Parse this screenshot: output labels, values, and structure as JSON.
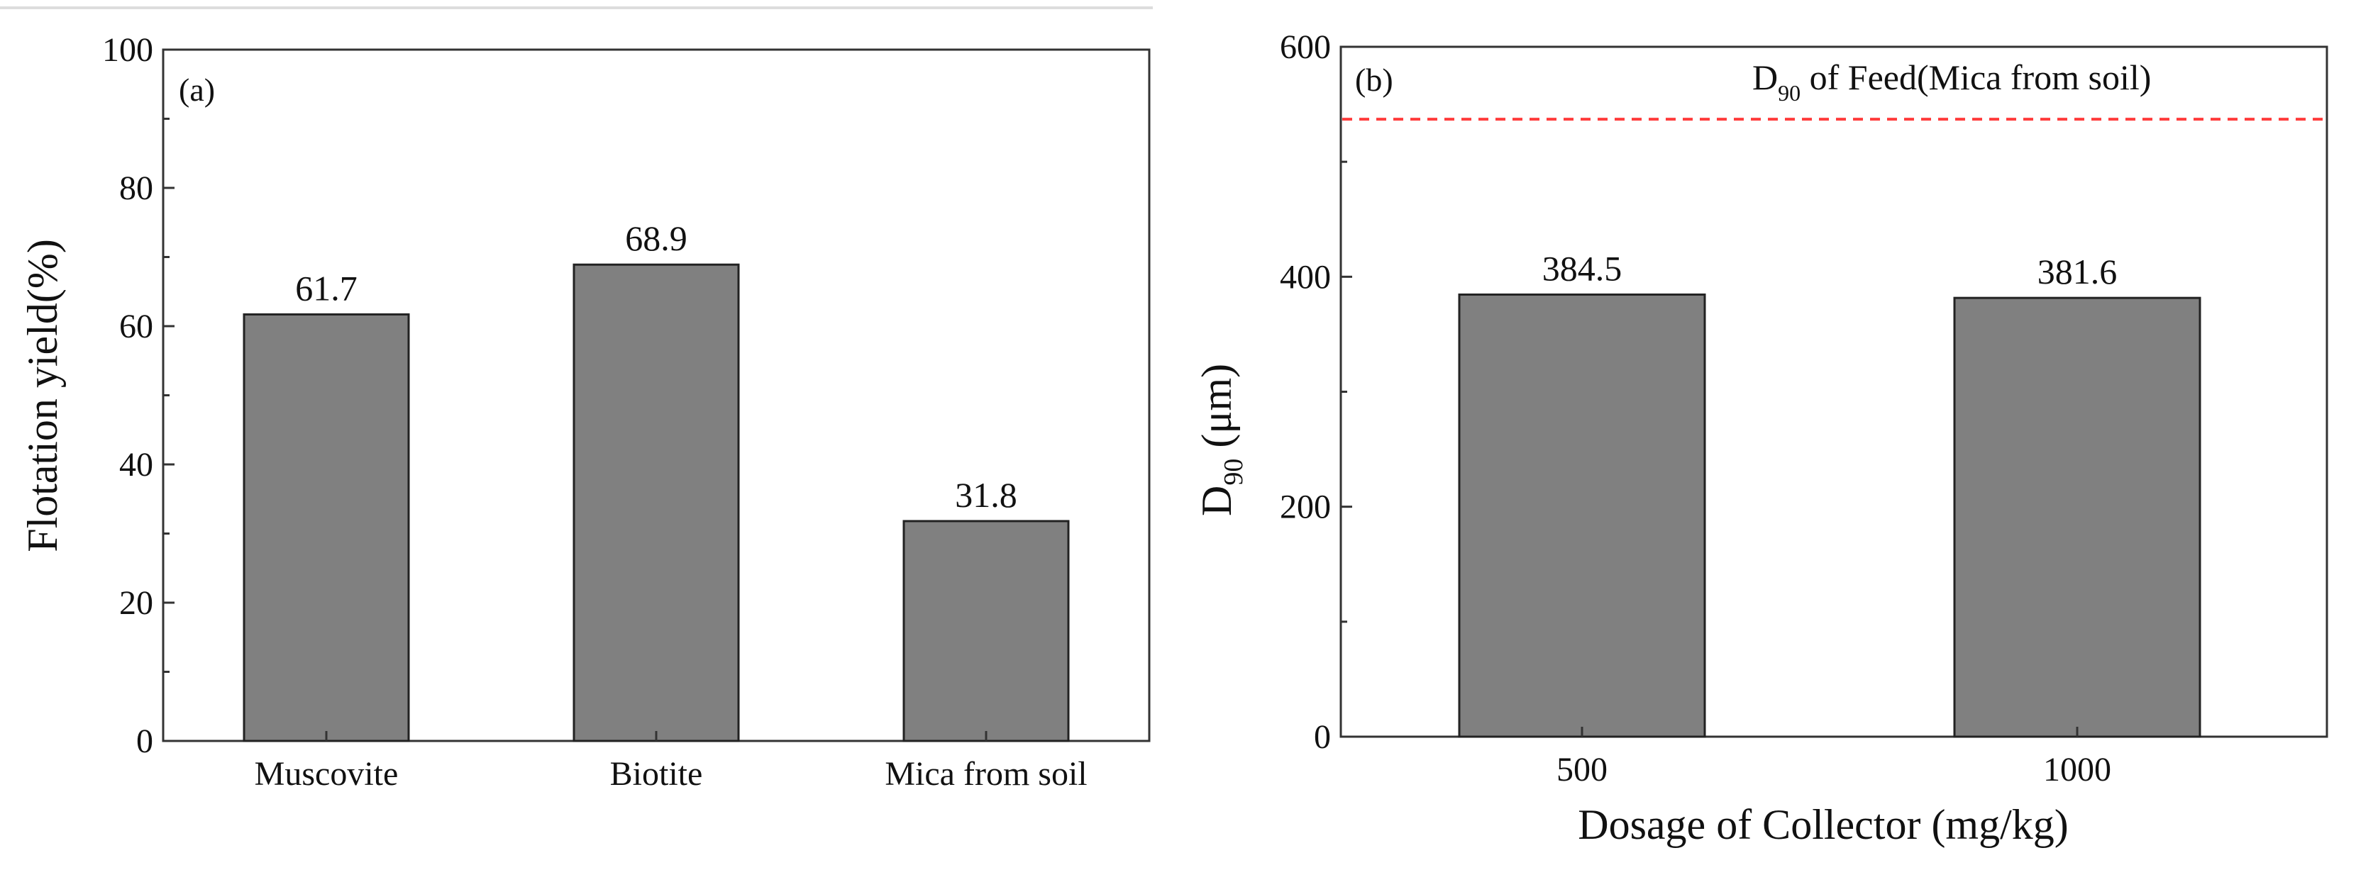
{
  "chart_data": [
    {
      "type": "bar",
      "panel_label": "(a)",
      "categories": [
        "Muscovite",
        "Biotite",
        "Mica from soil"
      ],
      "values": [
        61.7,
        68.9,
        31.8
      ],
      "value_labels": [
        "61.7",
        "68.9",
        "31.8"
      ],
      "xlabel": "",
      "ylabel": "Flotation yield(%)",
      "ylim": [
        0,
        100
      ],
      "yticks": [
        0,
        20,
        40,
        60,
        80,
        100
      ],
      "grid": false,
      "bar_color": "#808080"
    },
    {
      "type": "bar",
      "panel_label": "(b)",
      "categories": [
        "500",
        "1000"
      ],
      "values": [
        384.5,
        381.6
      ],
      "value_labels": [
        "384.5",
        "381.6"
      ],
      "xlabel": "Dosage of Collector (mg/kg)",
      "ylabel": "D90 (μm)",
      "ylabel_parts": {
        "main": "D",
        "sub": "90",
        "rest": " (μm)"
      },
      "ylim": [
        0,
        600
      ],
      "yticks": [
        0,
        200,
        400,
        600
      ],
      "grid": false,
      "bar_color": "#808080",
      "reference_line": {
        "value": 537,
        "color": "#ff3b3b",
        "label": "D90 of Feed(Mica from soil)",
        "label_parts": {
          "main": "D",
          "sub": "90",
          "rest": " of Feed(Mica from soil)"
        }
      }
    }
  ]
}
